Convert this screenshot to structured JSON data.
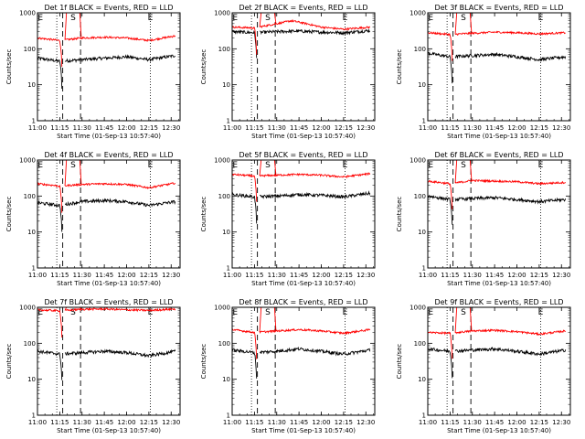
{
  "colors": {
    "events": "#000000",
    "lld": "#ff0000",
    "axis": "#000000",
    "background": "#ffffff"
  },
  "chart_data": [
    {
      "type": "line",
      "title": "Det 1f BLACK = Events, RED = LLD",
      "xlabel": "Start Time (01-Sep-13 10:57:40)",
      "ylabel": "Counts/sec",
      "x_ticks": [
        "11:00",
        "11:15",
        "11:30",
        "11:45",
        "12:00",
        "12:15",
        "12:30"
      ],
      "y_ticks": [
        "1",
        "10",
        "100",
        "1000"
      ],
      "ylim": [
        1,
        1000
      ],
      "yscale": "log",
      "xlim": [
        "11:00",
        "12:36"
      ],
      "markers": [
        {
          "label": "E",
          "time": "11:02"
        },
        {
          "label": "S",
          "time": "11:24"
        },
        {
          "label": "E",
          "time": "12:16"
        }
      ],
      "dashed_lines": [
        "11:17",
        "11:29"
      ],
      "dotted_lines": [
        "11:13",
        "12:16"
      ],
      "series": [
        {
          "name": "Events",
          "base": [
            {
              "t": "11:00",
              "v": 55
            },
            {
              "t": "11:15",
              "v": 45
            },
            {
              "t": "11:30",
              "v": 50
            },
            {
              "t": "11:45",
              "v": 55
            },
            {
              "t": "12:00",
              "v": 60
            },
            {
              "t": "12:15",
              "v": 50
            },
            {
              "t": "12:33",
              "v": 65
            }
          ]
        },
        {
          "name": "LLD",
          "base": [
            {
              "t": "11:00",
              "v": 200
            },
            {
              "t": "11:15",
              "v": 170
            },
            {
              "t": "11:30",
              "v": 200
            },
            {
              "t": "11:45",
              "v": 210
            },
            {
              "t": "12:00",
              "v": 200
            },
            {
              "t": "12:15",
              "v": 170
            },
            {
              "t": "12:33",
              "v": 230
            }
          ]
        }
      ]
    },
    {
      "type": "line",
      "title": "Det 2f BLACK = Events, RED = LLD",
      "xlabel": "Start Time (01-Sep-13 10:57:40)",
      "ylabel": "Counts/sec",
      "x_ticks": [
        "11:00",
        "11:15",
        "11:30",
        "11:45",
        "12:00",
        "12:15",
        "12:30"
      ],
      "y_ticks": [
        "1",
        "10",
        "100",
        "1000"
      ],
      "ylim": [
        1,
        1000
      ],
      "yscale": "log",
      "xlim": [
        "11:00",
        "12:36"
      ],
      "markers": [
        {
          "label": "E",
          "time": "11:02"
        },
        {
          "label": "S",
          "time": "11:24"
        },
        {
          "label": "E",
          "time": "12:16"
        }
      ],
      "dashed_lines": [
        "11:17",
        "11:29"
      ],
      "dotted_lines": [
        "11:13",
        "12:16"
      ],
      "series": [
        {
          "name": "Events",
          "base": [
            {
              "t": "11:00",
              "v": 300
            },
            {
              "t": "11:15",
              "v": 280
            },
            {
              "t": "11:30",
              "v": 300
            },
            {
              "t": "11:45",
              "v": 310
            },
            {
              "t": "12:00",
              "v": 290
            },
            {
              "t": "12:15",
              "v": 280
            },
            {
              "t": "12:33",
              "v": 320
            }
          ]
        },
        {
          "name": "LLD",
          "base": [
            {
              "t": "11:00",
              "v": 400
            },
            {
              "t": "11:15",
              "v": 380
            },
            {
              "t": "11:30",
              "v": 500
            },
            {
              "t": "11:40",
              "v": 600
            },
            {
              "t": "11:50",
              "v": 500
            },
            {
              "t": "12:00",
              "v": 400
            },
            {
              "t": "12:15",
              "v": 350
            },
            {
              "t": "12:33",
              "v": 400
            }
          ]
        }
      ]
    },
    {
      "type": "line",
      "title": "Det 3f BLACK = Events, RED = LLD",
      "xlabel": "Start Time (01-Sep-13 10:57:40)",
      "ylabel": "Counts/sec",
      "x_ticks": [
        "11:00",
        "11:15",
        "11:30",
        "11:45",
        "12:00",
        "12:15",
        "12:30"
      ],
      "y_ticks": [
        "1",
        "10",
        "100",
        "1000"
      ],
      "ylim": [
        1,
        1000
      ],
      "yscale": "log",
      "xlim": [
        "11:00",
        "12:36"
      ],
      "markers": [
        {
          "label": "E",
          "time": "11:02"
        },
        {
          "label": "S",
          "time": "11:24"
        },
        {
          "label": "E",
          "time": "12:16"
        }
      ],
      "dashed_lines": [
        "11:17",
        "11:29"
      ],
      "dotted_lines": [
        "11:13",
        "12:16"
      ],
      "series": [
        {
          "name": "Events",
          "base": [
            {
              "t": "11:00",
              "v": 75
            },
            {
              "t": "11:15",
              "v": 60
            },
            {
              "t": "11:30",
              "v": 65
            },
            {
              "t": "11:45",
              "v": 70
            },
            {
              "t": "12:00",
              "v": 60
            },
            {
              "t": "12:15",
              "v": 50
            },
            {
              "t": "12:33",
              "v": 60
            }
          ]
        },
        {
          "name": "LLD",
          "base": [
            {
              "t": "11:00",
              "v": 280
            },
            {
              "t": "11:15",
              "v": 250
            },
            {
              "t": "11:30",
              "v": 270
            },
            {
              "t": "11:45",
              "v": 290
            },
            {
              "t": "12:00",
              "v": 280
            },
            {
              "t": "12:15",
              "v": 260
            },
            {
              "t": "12:33",
              "v": 280
            }
          ]
        }
      ]
    },
    {
      "type": "line",
      "title": "Det 4f BLACK = Events, RED = LLD",
      "xlabel": "Start Time (01-Sep-13 10:57:40)",
      "ylabel": "Counts/sec",
      "x_ticks": [
        "11:00",
        "11:15",
        "11:30",
        "11:45",
        "12:00",
        "12:15",
        "12:30"
      ],
      "y_ticks": [
        "1",
        "10",
        "100",
        "1000"
      ],
      "ylim": [
        1,
        1000
      ],
      "yscale": "log",
      "xlim": [
        "11:00",
        "12:36"
      ],
      "markers": [
        {
          "label": "E",
          "time": "11:02"
        },
        {
          "label": "S",
          "time": "11:24"
        },
        {
          "label": "E",
          "time": "12:16"
        }
      ],
      "dashed_lines": [
        "11:17",
        "11:29"
      ],
      "dotted_lines": [
        "11:13",
        "12:16"
      ],
      "series": [
        {
          "name": "Events",
          "base": [
            {
              "t": "11:00",
              "v": 65
            },
            {
              "t": "11:15",
              "v": 55
            },
            {
              "t": "11:30",
              "v": 70
            },
            {
              "t": "11:45",
              "v": 75
            },
            {
              "t": "12:00",
              "v": 70
            },
            {
              "t": "12:15",
              "v": 55
            },
            {
              "t": "12:33",
              "v": 70
            }
          ]
        },
        {
          "name": "LLD",
          "base": [
            {
              "t": "11:00",
              "v": 220
            },
            {
              "t": "11:15",
              "v": 190
            },
            {
              "t": "11:30",
              "v": 210
            },
            {
              "t": "11:45",
              "v": 220
            },
            {
              "t": "12:00",
              "v": 210
            },
            {
              "t": "12:15",
              "v": 170
            },
            {
              "t": "12:33",
              "v": 230
            }
          ]
        }
      ]
    },
    {
      "type": "line",
      "title": "Det 5f BLACK = Events, RED = LLD",
      "xlabel": "Start Time (01-Sep-13 10:57:40)",
      "ylabel": "Counts/sec",
      "x_ticks": [
        "11:00",
        "11:15",
        "11:30",
        "11:45",
        "12:00",
        "12:15",
        "12:30"
      ],
      "y_ticks": [
        "1",
        "10",
        "100",
        "1000"
      ],
      "ylim": [
        1,
        1000
      ],
      "yscale": "log",
      "xlim": [
        "11:00",
        "12:36"
      ],
      "markers": [
        {
          "label": "E",
          "time": "11:02"
        },
        {
          "label": "S",
          "time": "11:24"
        },
        {
          "label": "E",
          "time": "12:16"
        }
      ],
      "dashed_lines": [
        "11:17",
        "11:29"
      ],
      "dotted_lines": [
        "11:13",
        "12:16"
      ],
      "series": [
        {
          "name": "Events",
          "base": [
            {
              "t": "11:00",
              "v": 110
            },
            {
              "t": "11:15",
              "v": 95
            },
            {
              "t": "11:30",
              "v": 100
            },
            {
              "t": "11:45",
              "v": 110
            },
            {
              "t": "12:00",
              "v": 105
            },
            {
              "t": "12:15",
              "v": 95
            },
            {
              "t": "12:33",
              "v": 120
            }
          ]
        },
        {
          "name": "LLD",
          "base": [
            {
              "t": "11:00",
              "v": 400
            },
            {
              "t": "11:15",
              "v": 360
            },
            {
              "t": "11:30",
              "v": 380
            },
            {
              "t": "11:45",
              "v": 400
            },
            {
              "t": "12:00",
              "v": 380
            },
            {
              "t": "12:15",
              "v": 340
            },
            {
              "t": "12:33",
              "v": 420
            }
          ]
        }
      ]
    },
    {
      "type": "line",
      "title": "Det 6f BLACK = Events, RED = LLD",
      "xlabel": "Start Time (01-Sep-13 10:57:40)",
      "ylabel": "Counts/sec",
      "x_ticks": [
        "11:00",
        "11:15",
        "11:30",
        "11:45",
        "12:00",
        "12:15",
        "12:30"
      ],
      "y_ticks": [
        "1",
        "10",
        "100",
        "1000"
      ],
      "ylim": [
        1,
        1000
      ],
      "yscale": "log",
      "xlim": [
        "11:00",
        "12:36"
      ],
      "markers": [
        {
          "label": "E",
          "time": "11:02"
        },
        {
          "label": "S",
          "time": "11:24"
        },
        {
          "label": "E",
          "time": "12:16"
        }
      ],
      "dashed_lines": [
        "11:17",
        "11:29"
      ],
      "dotted_lines": [
        "11:13",
        "12:16"
      ],
      "series": [
        {
          "name": "Events",
          "base": [
            {
              "t": "11:00",
              "v": 100
            },
            {
              "t": "11:15",
              "v": 80
            },
            {
              "t": "11:30",
              "v": 85
            },
            {
              "t": "11:45",
              "v": 90
            },
            {
              "t": "12:00",
              "v": 80
            },
            {
              "t": "12:15",
              "v": 70
            },
            {
              "t": "12:33",
              "v": 80
            }
          ]
        },
        {
          "name": "LLD",
          "base": [
            {
              "t": "11:00",
              "v": 260
            },
            {
              "t": "11:15",
              "v": 220
            },
            {
              "t": "11:30",
              "v": 270
            },
            {
              "t": "11:45",
              "v": 260
            },
            {
              "t": "12:00",
              "v": 250
            },
            {
              "t": "12:15",
              "v": 220
            },
            {
              "t": "12:33",
              "v": 240
            }
          ]
        }
      ]
    },
    {
      "type": "line",
      "title": "Det 7f BLACK = Events, RED = LLD",
      "xlabel": "Start Time (01-Sep-13 10:57:40)",
      "ylabel": "Counts/sec",
      "x_ticks": [
        "11:00",
        "11:15",
        "11:30",
        "11:45",
        "12:00",
        "12:15",
        "12:30"
      ],
      "y_ticks": [
        "1",
        "10",
        "100",
        "1000"
      ],
      "ylim": [
        1,
        1000
      ],
      "yscale": "log",
      "xlim": [
        "11:00",
        "12:36"
      ],
      "markers": [
        {
          "label": "E",
          "time": "11:02"
        },
        {
          "label": "S",
          "time": "11:24"
        },
        {
          "label": "E",
          "time": "12:16"
        }
      ],
      "dashed_lines": [
        "11:17",
        "11:29"
      ],
      "dotted_lines": [
        "11:13",
        "12:16"
      ],
      "series": [
        {
          "name": "Events",
          "base": [
            {
              "t": "11:00",
              "v": 60
            },
            {
              "t": "11:15",
              "v": 50
            },
            {
              "t": "11:30",
              "v": 55
            },
            {
              "t": "11:45",
              "v": 60
            },
            {
              "t": "12:00",
              "v": 55
            },
            {
              "t": "12:15",
              "v": 45
            },
            {
              "t": "12:33",
              "v": 60
            }
          ]
        },
        {
          "name": "LLD",
          "base": [
            {
              "t": "11:00",
              "v": 850
            },
            {
              "t": "11:15",
              "v": 800
            },
            {
              "t": "11:30",
              "v": 880
            },
            {
              "t": "11:45",
              "v": 900
            },
            {
              "t": "12:00",
              "v": 850
            },
            {
              "t": "12:15",
              "v": 820
            },
            {
              "t": "12:33",
              "v": 900
            }
          ]
        }
      ]
    },
    {
      "type": "line",
      "title": "Det 8f BLACK = Events, RED = LLD",
      "xlabel": "Start Time (01-Sep-13 10:57:40)",
      "ylabel": "Counts/sec",
      "x_ticks": [
        "11:00",
        "11:15",
        "11:30",
        "11:45",
        "12:00",
        "12:15",
        "12:30"
      ],
      "y_ticks": [
        "1",
        "10",
        "100",
        "1000"
      ],
      "ylim": [
        1,
        1000
      ],
      "yscale": "log",
      "xlim": [
        "11:00",
        "12:36"
      ],
      "markers": [
        {
          "label": "E",
          "time": "11:02"
        },
        {
          "label": "S",
          "time": "11:24"
        },
        {
          "label": "E",
          "time": "12:16"
        }
      ],
      "dashed_lines": [
        "11:17",
        "11:29"
      ],
      "dotted_lines": [
        "11:13",
        "12:16"
      ],
      "series": [
        {
          "name": "Events",
          "base": [
            {
              "t": "11:00",
              "v": 65
            },
            {
              "t": "11:15",
              "v": 55
            },
            {
              "t": "11:30",
              "v": 60
            },
            {
              "t": "11:45",
              "v": 70
            },
            {
              "t": "12:00",
              "v": 60
            },
            {
              "t": "12:15",
              "v": 50
            },
            {
              "t": "12:33",
              "v": 65
            }
          ]
        },
        {
          "name": "LLD",
          "base": [
            {
              "t": "11:00",
              "v": 240
            },
            {
              "t": "11:15",
              "v": 200
            },
            {
              "t": "11:30",
              "v": 220
            },
            {
              "t": "11:45",
              "v": 240
            },
            {
              "t": "12:00",
              "v": 220
            },
            {
              "t": "12:15",
              "v": 190
            },
            {
              "t": "12:33",
              "v": 240
            }
          ]
        }
      ]
    },
    {
      "type": "line",
      "title": "Det 9f BLACK = Events, RED = LLD",
      "xlabel": "Start Time (01-Sep-13 10:57:40)",
      "ylabel": "Counts/sec",
      "x_ticks": [
        "11:00",
        "11:15",
        "11:30",
        "11:45",
        "12:00",
        "12:15",
        "12:30"
      ],
      "y_ticks": [
        "1",
        "10",
        "100",
        "1000"
      ],
      "ylim": [
        1,
        1000
      ],
      "yscale": "log",
      "xlim": [
        "11:00",
        "12:36"
      ],
      "markers": [
        {
          "label": "E",
          "time": "11:02"
        },
        {
          "label": "S",
          "time": "11:24"
        },
        {
          "label": "E",
          "time": "12:16"
        }
      ],
      "dashed_lines": [
        "11:17",
        "11:29"
      ],
      "dotted_lines": [
        "11:13",
        "12:16"
      ],
      "series": [
        {
          "name": "Events",
          "base": [
            {
              "t": "11:00",
              "v": 70
            },
            {
              "t": "11:15",
              "v": 60
            },
            {
              "t": "11:30",
              "v": 65
            },
            {
              "t": "11:45",
              "v": 70
            },
            {
              "t": "12:00",
              "v": 60
            },
            {
              "t": "12:15",
              "v": 50
            },
            {
              "t": "12:33",
              "v": 65
            }
          ]
        },
        {
          "name": "LLD",
          "base": [
            {
              "t": "11:00",
              "v": 200
            },
            {
              "t": "11:15",
              "v": 190
            },
            {
              "t": "11:30",
              "v": 220
            },
            {
              "t": "11:45",
              "v": 230
            },
            {
              "t": "12:00",
              "v": 210
            },
            {
              "t": "12:15",
              "v": 180
            },
            {
              "t": "12:33",
              "v": 220
            }
          ]
        }
      ]
    }
  ]
}
